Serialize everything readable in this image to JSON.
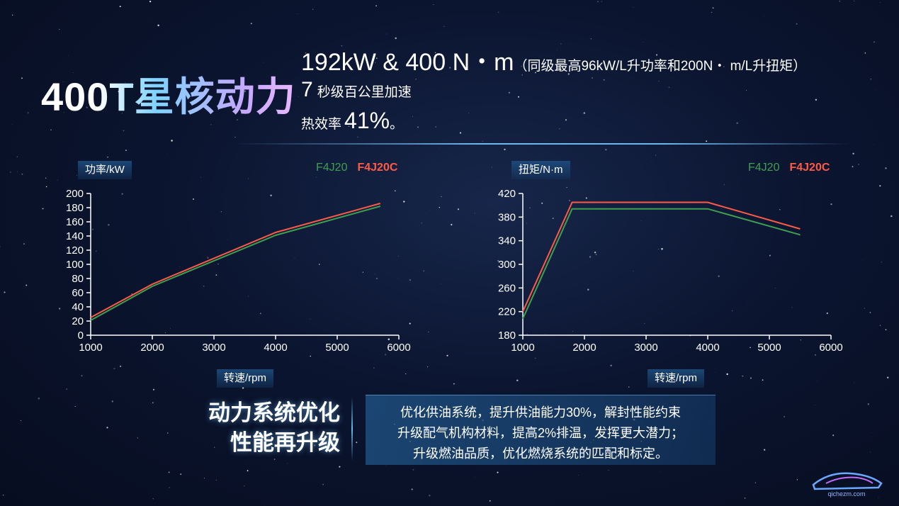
{
  "headline": {
    "title": "400T星核动力",
    "power_torque": "192kW & 400 N・m",
    "power_torque_note": "（同级最高96kW/L升功率和200N・ m/L升扭矩）",
    "accel_value": "7",
    "accel_label": "秒级百公里加速",
    "efficiency_label": "热效率",
    "efficiency_value": "41%",
    "efficiency_tail": "。"
  },
  "colors": {
    "f4j20": "#3f9f4f",
    "f4j20c": "#ff5a45",
    "accent": "#78c8ff"
  },
  "summary": {
    "slogan_line1": "动力系统优化",
    "slogan_line2": "性能再升级",
    "desc_lines": [
      "优化供油系统，提升供油能力30%，解封性能约束",
      "升级配气机构材料，提高2%排温，发挥更大潜力；",
      "升级燃油品质，优化燃烧系统的匹配和标定。"
    ]
  },
  "watermark": {
    "text": "qichezm.com"
  },
  "chart_data": [
    {
      "type": "line",
      "ylabel": "功率/kW",
      "xlabel": "转速/rpm",
      "xlim": [
        1000,
        6000
      ],
      "ylim": [
        0,
        200
      ],
      "xticks": [
        1000,
        2000,
        3000,
        4000,
        5000,
        6000
      ],
      "yticks": [
        0,
        20,
        40,
        60,
        80,
        100,
        120,
        140,
        160,
        180,
        200
      ],
      "grid": false,
      "legend": "top-right",
      "series": [
        {
          "name": "F4J20",
          "color": "#3f9f4f",
          "x": [
            1000,
            2000,
            4000,
            5700
          ],
          "y": [
            21,
            69,
            141,
            182
          ]
        },
        {
          "name": "F4J20C",
          "color": "#ff5a45",
          "x": [
            1000,
            2000,
            4000,
            5700
          ],
          "y": [
            25,
            72,
            145,
            186
          ]
        }
      ]
    },
    {
      "type": "line",
      "ylabel": "扭矩/N·m",
      "xlabel": "转速/rpm",
      "xlim": [
        1000,
        6000
      ],
      "ylim": [
        180,
        420
      ],
      "xticks": [
        1000,
        2000,
        3000,
        4000,
        5000,
        6000
      ],
      "yticks": [
        180,
        220,
        260,
        300,
        340,
        380,
        420
      ],
      "grid": false,
      "legend": "top-right",
      "series": [
        {
          "name": "F4J20",
          "color": "#3f9f4f",
          "x": [
            1000,
            1800,
            4000,
            5500
          ],
          "y": [
            208,
            394,
            394,
            350
          ]
        },
        {
          "name": "F4J20C",
          "color": "#ff5a45",
          "x": [
            1000,
            1800,
            4000,
            5500
          ],
          "y": [
            220,
            405,
            405,
            360
          ]
        }
      ]
    }
  ]
}
